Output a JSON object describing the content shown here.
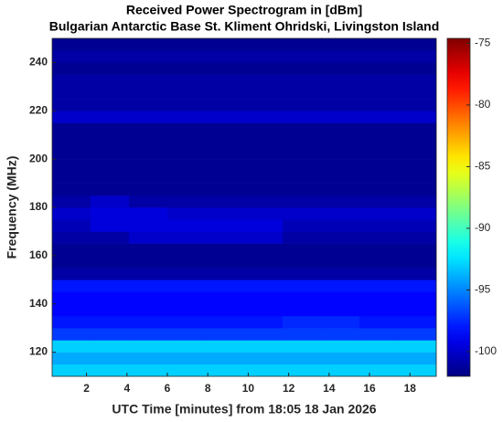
{
  "chart_data": {
    "type": "heatmap",
    "title": "Received Power Spectrogram in [dBm]",
    "subtitle": "Bulgarian Antarctic Base St. Kliment Ohridski, Livingston Island",
    "xlabel": "UTC Time [minutes] from 18:05 18 Jan 2026",
    "ylabel": "Frequency (MHz)",
    "colormap": "jet",
    "x": [
      1.25,
      3.15,
      5.05,
      6.95,
      8.85,
      10.75,
      12.65,
      14.55,
      16.45,
      18.35
    ],
    "y": [
      112.5,
      117.5,
      122.5,
      127.5,
      132.5,
      137.5,
      142.5,
      147.5,
      152.5,
      157.5,
      162.5,
      167.5,
      172.5,
      177.5,
      182.5,
      187.5,
      192.5,
      197.5,
      202.5,
      207.5,
      212.5,
      217.5,
      222.5,
      227.5,
      232.5,
      237.5,
      242.5,
      247.5
    ],
    "values": [
      [
        -93,
        -93,
        -93,
        -93,
        -93,
        -93,
        -93,
        -93,
        -93,
        -93
      ],
      [
        -94,
        -94,
        -94,
        -94,
        -94,
        -94,
        -94,
        -94,
        -94,
        -94
      ],
      [
        -93,
        -93,
        -93,
        -93,
        -93,
        -93,
        -93,
        -93,
        -93,
        -93
      ],
      [
        -97,
        -97,
        -97,
        -97,
        -97,
        -97,
        -97,
        -97,
        -97,
        -97
      ],
      [
        -98,
        -98,
        -98,
        -98,
        -98,
        -98,
        -97.5,
        -97.5,
        -98,
        -98
      ],
      [
        -98.5,
        -98.5,
        -98.5,
        -98.5,
        -98.5,
        -98.5,
        -98.5,
        -98.5,
        -98.5,
        -98.5
      ],
      [
        -98.5,
        -98.5,
        -98.5,
        -98.5,
        -98.5,
        -98.5,
        -98.5,
        -98.5,
        -98.5,
        -98.5
      ],
      [
        -98,
        -98,
        -98,
        -98,
        -98,
        -98,
        -98,
        -98,
        -98,
        -98
      ],
      [
        -101,
        -101,
        -101,
        -101,
        -101,
        -101,
        -101,
        -101,
        -101,
        -101
      ],
      [
        -101.5,
        -101.5,
        -101.5,
        -101.5,
        -101.5,
        -101.5,
        -101.5,
        -101.5,
        -101.5,
        -101.5
      ],
      [
        -101.5,
        -101.5,
        -101.5,
        -101.5,
        -101.5,
        -101.5,
        -101.5,
        -101.5,
        -101.5,
        -101.5
      ],
      [
        -101,
        -101,
        -100,
        -100,
        -100,
        -100,
        -101,
        -101,
        -101,
        -101
      ],
      [
        -100.5,
        -99.5,
        -99.5,
        -99.5,
        -99.5,
        -99.5,
        -100.5,
        -100.5,
        -100.5,
        -100.5
      ],
      [
        -100,
        -99.5,
        -99.5,
        -100,
        -100,
        -100,
        -100,
        -100,
        -100,
        -100
      ],
      [
        -101,
        -100,
        -101,
        -101,
        -101,
        -101,
        -101,
        -101,
        -101,
        -101
      ],
      [
        -101.5,
        -101.5,
        -101.5,
        -101.5,
        -101.5,
        -101.5,
        -101.5,
        -101.5,
        -101.5,
        -101.5
      ],
      [
        -101.5,
        -101.5,
        -101.5,
        -101.5,
        -101.5,
        -101.5,
        -101.5,
        -101.5,
        -101.5,
        -101.5
      ],
      [
        -101.5,
        -101.5,
        -101.5,
        -101.5,
        -101.5,
        -101.5,
        -101.5,
        -101.5,
        -101.5,
        -101.5
      ],
      [
        -101.5,
        -101.5,
        -101.5,
        -101.5,
        -101.5,
        -101.5,
        -101.5,
        -101.5,
        -101.5,
        -101.5
      ],
      [
        -101.5,
        -101.5,
        -101.5,
        -101.5,
        -101.5,
        -101.5,
        -101.5,
        -101.5,
        -101.5,
        -101.5
      ],
      [
        -101.5,
        -101.5,
        -101.5,
        -101.5,
        -101.5,
        -101.5,
        -101.5,
        -101.5,
        -101.5,
        -101.5
      ],
      [
        -100,
        -100,
        -100,
        -100,
        -100,
        -100,
        -100,
        -100,
        -100,
        -100
      ],
      [
        -101,
        -101,
        -101,
        -101,
        -101,
        -101,
        -101,
        -101,
        -101,
        -101
      ],
      [
        -101,
        -101,
        -101,
        -101,
        -101,
        -101,
        -101,
        -101,
        -101,
        -101
      ],
      [
        -101,
        -101,
        -101,
        -101,
        -101,
        -101,
        -101,
        -101,
        -101,
        -101
      ],
      [
        -101.5,
        -101.5,
        -101.5,
        -101.5,
        -101.5,
        -101.5,
        -101.5,
        -101.5,
        -101.5,
        -101.5
      ],
      [
        -101,
        -101,
        -101,
        -101,
        -101,
        -101,
        -101,
        -101,
        -101,
        -101
      ],
      [
        -101.5,
        -101.5,
        -101.5,
        -101.5,
        -101.5,
        -101.5,
        -101.5,
        -101.5,
        -101.5,
        -101.5
      ]
    ],
    "xlim": [
      0.3,
      19.3
    ],
    "xticks": [
      2,
      4,
      6,
      8,
      10,
      12,
      14,
      16,
      18
    ],
    "ylim": [
      110,
      250
    ],
    "yticks": [
      120,
      140,
      160,
      180,
      200,
      220,
      240
    ],
    "clim": [
      -102,
      -74.6
    ],
    "cticks": [
      -100,
      -95,
      -90,
      -85,
      -80,
      -75
    ]
  }
}
